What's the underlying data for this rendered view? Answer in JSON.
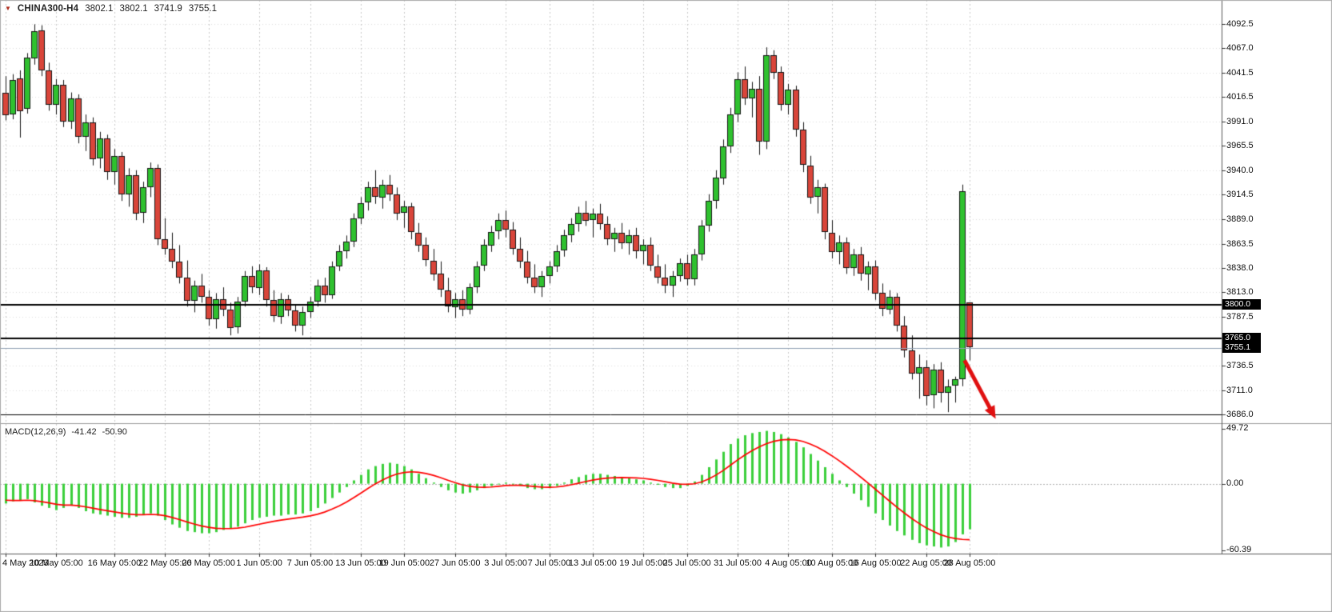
{
  "header": {
    "marker_icon": "▼",
    "symbol": "CHINA300-H4",
    "open": "3802.1",
    "high": "3802.1",
    "low": "3741.9",
    "close": "3755.1"
  },
  "indicator_label": {
    "name": "MACD(12,26,9)",
    "main_value": "-41.42",
    "signal_value": "-50.90"
  },
  "price_axis": {
    "labels": [
      {
        "text": "4092.5",
        "price": 4092.5
      },
      {
        "text": "4067.0",
        "price": 4067.0
      },
      {
        "text": "4041.5",
        "price": 4041.5
      },
      {
        "text": "4016.5",
        "price": 4016.5
      },
      {
        "text": "3991.0",
        "price": 3991.0
      },
      {
        "text": "3965.5",
        "price": 3965.5
      },
      {
        "text": "3940.0",
        "price": 3940.0
      },
      {
        "text": "3914.5",
        "price": 3914.5
      },
      {
        "text": "3889.0",
        "price": 3889.0
      },
      {
        "text": "3863.5",
        "price": 3863.5
      },
      {
        "text": "3838.0",
        "price": 3838.0
      },
      {
        "text": "3813.0",
        "price": 3813.0
      },
      {
        "text": "3787.5",
        "price": 3787.5
      },
      {
        "text": "3736.5",
        "price": 3736.5
      },
      {
        "text": "3711.0",
        "price": 3711.0
      },
      {
        "text": "3686.0",
        "price": 3686.0
      }
    ],
    "level_boxes": [
      {
        "text": "3800.0",
        "price": 3800.0
      },
      {
        "text": "3765.0",
        "price": 3765.0
      }
    ],
    "bid_box": {
      "text": "3755.1",
      "price": 3755.1
    }
  },
  "macd_axis": {
    "labels": [
      {
        "text": "49.72",
        "value": 49.72
      },
      {
        "text": "0.00",
        "value": 0
      },
      {
        "text": "-60.39",
        "value": -60.39
      }
    ]
  },
  "time_axis": {
    "labels": [
      {
        "text": "4 May 2023",
        "bar": 0
      },
      {
        "text": "10 May 05:00",
        "bar": 7
      },
      {
        "text": "16 May 05:00",
        "bar": 15
      },
      {
        "text": "22 May 05:00",
        "bar": 22
      },
      {
        "text": "26 May 05:00",
        "bar": 28
      },
      {
        "text": "1 Jun 05:00",
        "bar": 35
      },
      {
        "text": "7 Jun 05:00",
        "bar": 42
      },
      {
        "text": "13 Jun 05:00",
        "bar": 49
      },
      {
        "text": "19 Jun 05:00",
        "bar": 55
      },
      {
        "text": "27 Jun 05:00",
        "bar": 62
      },
      {
        "text": "3 Jul 05:00",
        "bar": 69
      },
      {
        "text": "7 Jul 05:00",
        "bar": 75
      },
      {
        "text": "13 Jul 05:00",
        "bar": 81
      },
      {
        "text": "19 Jul 05:00",
        "bar": 88
      },
      {
        "text": "25 Jul 05:00",
        "bar": 94
      },
      {
        "text": "31 Jul 05:00",
        "bar": 101
      },
      {
        "text": "4 Aug 05:00",
        "bar": 108
      },
      {
        "text": "10 Aug 05:00",
        "bar": 114
      },
      {
        "text": "16 Aug 05:00",
        "bar": 120
      },
      {
        "text": "22 Aug 05:00",
        "bar": 127
      },
      {
        "text": "28 Aug 05:00",
        "bar": 133
      }
    ]
  },
  "chart_data": {
    "type": "candlestick",
    "symbol": "CHINA300-H4",
    "timeframe": "H4",
    "title": "CHINA300-H4 3802.1 3802.1 3741.9 3755.1",
    "price_range": {
      "min": 3676.5,
      "max": 4117.3
    },
    "candles": [
      [
        4021,
        4038,
        3992,
        3998
      ],
      [
        3998,
        4040,
        3993,
        4034
      ],
      [
        4036,
        4044,
        3974,
        4002
      ],
      [
        4004,
        4062,
        3999,
        4057
      ],
      [
        4057,
        4092,
        4050,
        4085
      ],
      [
        4086,
        4091,
        4038,
        4044
      ],
      [
        4044,
        4052,
        4002,
        4008
      ],
      [
        4008,
        4035,
        3998,
        4029
      ],
      [
        4029,
        4034,
        3985,
        3991
      ],
      [
        3991,
        4021,
        3983,
        4015
      ],
      [
        4015,
        4019,
        3968,
        3975
      ],
      [
        3975,
        3998,
        3960,
        3990
      ],
      [
        3990,
        3995,
        3945,
        3952
      ],
      [
        3952,
        3980,
        3942,
        3973
      ],
      [
        3973,
        3977,
        3930,
        3938
      ],
      [
        3938,
        3962,
        3925,
        3955
      ],
      [
        3955,
        3959,
        3908,
        3915
      ],
      [
        3915,
        3942,
        3902,
        3935
      ],
      [
        3935,
        3940,
        3888,
        3895
      ],
      [
        3895,
        3928,
        3885,
        3922
      ],
      [
        3922,
        3948,
        3912,
        3942
      ],
      [
        3942,
        3946,
        3862,
        3868
      ],
      [
        3868,
        3890,
        3852,
        3858
      ],
      [
        3858,
        3875,
        3838,
        3845
      ],
      [
        3845,
        3862,
        3822,
        3828
      ],
      [
        3828,
        3846,
        3798,
        3804
      ],
      [
        3804,
        3825,
        3792,
        3820
      ],
      [
        3820,
        3832,
        3802,
        3808
      ],
      [
        3808,
        3815,
        3778,
        3785
      ],
      [
        3785,
        3812,
        3775,
        3806
      ],
      [
        3806,
        3818,
        3788,
        3795
      ],
      [
        3795,
        3802,
        3768,
        3776
      ],
      [
        3776,
        3808,
        3770,
        3803
      ],
      [
        3803,
        3835,
        3798,
        3830
      ],
      [
        3830,
        3840,
        3812,
        3818
      ],
      [
        3818,
        3842,
        3810,
        3836
      ],
      [
        3836,
        3839,
        3798,
        3805
      ],
      [
        3805,
        3815,
        3782,
        3788
      ],
      [
        3788,
        3812,
        3780,
        3806
      ],
      [
        3806,
        3810,
        3788,
        3794
      ],
      [
        3794,
        3800,
        3772,
        3778
      ],
      [
        3778,
        3798,
        3768,
        3792
      ],
      [
        3792,
        3808,
        3786,
        3803
      ],
      [
        3803,
        3826,
        3798,
        3820
      ],
      [
        3820,
        3828,
        3802,
        3810
      ],
      [
        3810,
        3845,
        3806,
        3840
      ],
      [
        3840,
        3862,
        3835,
        3856
      ],
      [
        3856,
        3872,
        3848,
        3866
      ],
      [
        3866,
        3895,
        3860,
        3890
      ],
      [
        3890,
        3912,
        3884,
        3906
      ],
      [
        3906,
        3928,
        3898,
        3922
      ],
      [
        3922,
        3940,
        3905,
        3912
      ],
      [
        3912,
        3930,
        3900,
        3925
      ],
      [
        3925,
        3935,
        3908,
        3915
      ],
      [
        3915,
        3922,
        3888,
        3895
      ],
      [
        3895,
        3908,
        3880,
        3902
      ],
      [
        3902,
        3906,
        3868,
        3875
      ],
      [
        3875,
        3885,
        3855,
        3862
      ],
      [
        3862,
        3870,
        3840,
        3846
      ],
      [
        3846,
        3858,
        3825,
        3832
      ],
      [
        3832,
        3845,
        3808,
        3815
      ],
      [
        3815,
        3828,
        3792,
        3798
      ],
      [
        3798,
        3812,
        3786,
        3806
      ],
      [
        3806,
        3815,
        3788,
        3795
      ],
      [
        3795,
        3822,
        3790,
        3818
      ],
      [
        3818,
        3845,
        3812,
        3840
      ],
      [
        3840,
        3868,
        3835,
        3862
      ],
      [
        3862,
        3882,
        3855,
        3876
      ],
      [
        3876,
        3895,
        3868,
        3888
      ],
      [
        3888,
        3898,
        3870,
        3878
      ],
      [
        3878,
        3886,
        3852,
        3858
      ],
      [
        3858,
        3870,
        3838,
        3845
      ],
      [
        3845,
        3856,
        3822,
        3828
      ],
      [
        3828,
        3842,
        3812,
        3818
      ],
      [
        3818,
        3835,
        3808,
        3830
      ],
      [
        3830,
        3845,
        3822,
        3840
      ],
      [
        3840,
        3862,
        3834,
        3856
      ],
      [
        3856,
        3878,
        3850,
        3872
      ],
      [
        3872,
        3890,
        3865,
        3884
      ],
      [
        3884,
        3902,
        3876,
        3896
      ],
      [
        3896,
        3908,
        3882,
        3888
      ],
      [
        3888,
        3900,
        3870,
        3895
      ],
      [
        3895,
        3905,
        3878,
        3884
      ],
      [
        3884,
        3892,
        3862,
        3868
      ],
      [
        3868,
        3880,
        3855,
        3875
      ],
      [
        3875,
        3885,
        3858,
        3864
      ],
      [
        3864,
        3878,
        3852,
        3872
      ],
      [
        3872,
        3880,
        3848,
        3855
      ],
      [
        3855,
        3868,
        3842,
        3862
      ],
      [
        3862,
        3870,
        3835,
        3840
      ],
      [
        3840,
        3852,
        3822,
        3828
      ],
      [
        3828,
        3842,
        3812,
        3820
      ],
      [
        3820,
        3835,
        3808,
        3830
      ],
      [
        3830,
        3848,
        3824,
        3843
      ],
      [
        3843,
        3852,
        3820,
        3826
      ],
      [
        3826,
        3858,
        3820,
        3852
      ],
      [
        3852,
        3888,
        3846,
        3882
      ],
      [
        3882,
        3915,
        3876,
        3908
      ],
      [
        3908,
        3940,
        3900,
        3932
      ],
      [
        3932,
        3972,
        3925,
        3965
      ],
      [
        3965,
        4005,
        3958,
        3998
      ],
      [
        3998,
        4042,
        3990,
        4035
      ],
      [
        4035,
        4048,
        4008,
        4015
      ],
      [
        4015,
        4032,
        3995,
        4025
      ],
      [
        4025,
        4038,
        3956,
        3970
      ],
      [
        3970,
        4068,
        3962,
        4060
      ],
      [
        4060,
        4065,
        4035,
        4042
      ],
      [
        4042,
        4048,
        4002,
        4008
      ],
      [
        4008,
        4030,
        3998,
        4024
      ],
      [
        4024,
        4028,
        3975,
        3982
      ],
      [
        3982,
        3990,
        3938,
        3945
      ],
      [
        3945,
        3955,
        3905,
        3912
      ],
      [
        3912,
        3930,
        3895,
        3922
      ],
      [
        3922,
        3926,
        3868,
        3875
      ],
      [
        3875,
        3888,
        3848,
        3855
      ],
      [
        3855,
        3872,
        3842,
        3865
      ],
      [
        3865,
        3870,
        3832,
        3838
      ],
      [
        3838,
        3858,
        3830,
        3852
      ],
      [
        3852,
        3860,
        3825,
        3832
      ],
      [
        3832,
        3845,
        3815,
        3840
      ],
      [
        3840,
        3846,
        3805,
        3812
      ],
      [
        3812,
        3822,
        3788,
        3795
      ],
      [
        3795,
        3815,
        3790,
        3808
      ],
      [
        3808,
        3812,
        3772,
        3778
      ],
      [
        3778,
        3788,
        3745,
        3752
      ],
      [
        3752,
        3768,
        3722,
        3728
      ],
      [
        3728,
        3748,
        3702,
        3735
      ],
      [
        3735,
        3742,
        3695,
        3705
      ],
      [
        3705,
        3738,
        3692,
        3732
      ],
      [
        3732,
        3740,
        3698,
        3708
      ],
      [
        3708,
        3722,
        3688,
        3715
      ],
      [
        3715,
        3725,
        3698,
        3722
      ],
      [
        3722,
        3925,
        3715,
        3918
      ],
      [
        3802.1,
        3802.1,
        3741.9,
        3755.1
      ]
    ],
    "levels": [
      {
        "price": 3800.0,
        "width": 2,
        "color": "#000000"
      },
      {
        "price": 3765.0,
        "width": 2,
        "color": "#000000"
      },
      {
        "price": 3686.0,
        "width": 1,
        "color": "#000000"
      }
    ],
    "bid_line": {
      "price": 3755.1
    },
    "macd": {
      "name": "MACD",
      "params": "12,26,9",
      "range": {
        "min": -63.5,
        "max": 53.5
      },
      "histogram": [
        -18,
        -16,
        -15,
        -14,
        -17,
        -20,
        -22,
        -24,
        -22,
        -20,
        -22,
        -25,
        -27,
        -28,
        -29,
        -30,
        -31,
        -31,
        -30,
        -28,
        -27,
        -29,
        -33,
        -37,
        -40,
        -43,
        -44,
        -45,
        -45,
        -44,
        -42,
        -41,
        -39,
        -36,
        -33,
        -31,
        -30,
        -29,
        -29,
        -28,
        -28,
        -27,
        -25,
        -22,
        -18,
        -13,
        -8,
        -3,
        3,
        8,
        13,
        16,
        18,
        19,
        18,
        16,
        13,
        9,
        5,
        1,
        -3,
        -6,
        -8,
        -9,
        -8,
        -6,
        -4,
        -2,
        0,
        1,
        0,
        -2,
        -4,
        -5,
        -5,
        -4,
        -2,
        1,
        4,
        6,
        8,
        9,
        9,
        8,
        7,
        6,
        5,
        4,
        3,
        1,
        -1,
        -3,
        -4,
        -4,
        -2,
        2,
        8,
        15,
        22,
        29,
        36,
        41,
        44,
        46,
        47,
        48,
        47,
        45,
        42,
        38,
        33,
        27,
        21,
        15,
        9,
        3,
        -3,
        -9,
        -15,
        -21,
        -27,
        -33,
        -38,
        -43,
        -47,
        -51,
        -54,
        -56,
        -57,
        -58,
        -57,
        -53,
        -46,
        -41.42
      ],
      "signal": [
        -15,
        -15.2,
        -15.2,
        -15,
        -15.4,
        -16.3,
        -17.4,
        -18.7,
        -19.4,
        -19.5,
        -20,
        -21,
        -22.2,
        -23.4,
        -24.5,
        -25.6,
        -26.7,
        -27.6,
        -28.1,
        -28.1,
        -27.9,
        -28.1,
        -29.1,
        -30.7,
        -32.6,
        -34.7,
        -36.6,
        -38.3,
        -39.6,
        -40.5,
        -40.8,
        -40.8,
        -40.4,
        -39.5,
        -38.2,
        -36.8,
        -35.4,
        -34.1,
        -33.1,
        -32.1,
        -31.3,
        -30.4,
        -29.3,
        -27.8,
        -25.8,
        -23.2,
        -20.2,
        -16.8,
        -12.8,
        -8.6,
        -4.3,
        -0.2,
        3.4,
        6.5,
        8.8,
        10.2,
        10.8,
        10.4,
        9.3,
        7.6,
        5.5,
        3.2,
        1.0,
        -1.0,
        -2.4,
        -3.1,
        -3.3,
        -3.0,
        -2.4,
        -1.7,
        -1.4,
        -1.5,
        -2.0,
        -2.6,
        -3.1,
        -3.3,
        -3.0,
        -2.2,
        -1.0,
        0.4,
        1.9,
        3.3,
        4.4,
        5.1,
        5.5,
        5.6,
        5.5,
        5.2,
        4.8,
        4.0,
        3.0,
        1.8,
        0.6,
        -0.3,
        -0.6,
        -0.1,
        1.5,
        4.2,
        7.8,
        12.0,
        16.8,
        21.6,
        26.1,
        30.1,
        33.5,
        36.4,
        38.5,
        39.8,
        40.2,
        39.8,
        38.4,
        36.1,
        33.1,
        29.5,
        25.4,
        20.9,
        16.1,
        11.1,
        5.9,
        0.5,
        -5.0,
        -10.6,
        -16.1,
        -21.5,
        -26.6,
        -31.5,
        -36.0,
        -40.0,
        -43.4,
        -46.3,
        -48.4,
        -49.8,
        -50.6,
        -50.9
      ]
    },
    "annotation_arrow": {
      "from": {
        "bar": 132.3,
        "price": 3742
      },
      "to": {
        "bar": 136.6,
        "price": 3681
      }
    }
  },
  "colors": {
    "background": "#ffffff",
    "grid": "#c8c8c8",
    "grid_h": "#dcdcdc",
    "candle_up": "#2fc12f",
    "candle_down": "#d9453a",
    "candle_outline": "#151515",
    "histogram": "#3ccf3c",
    "signal": "#ff0000",
    "level": "#000000",
    "bid_line": "#8fa0b3",
    "separator": "#9a9a9a",
    "axis_border": "#5a5a5a",
    "tick": "#333333",
    "text": "#111111",
    "box_bg": "#000000",
    "box_text": "#ffffff",
    "arrow": "#e01010",
    "zero_line": "#b0b0b0",
    "window_border": "#aaaaaa"
  }
}
